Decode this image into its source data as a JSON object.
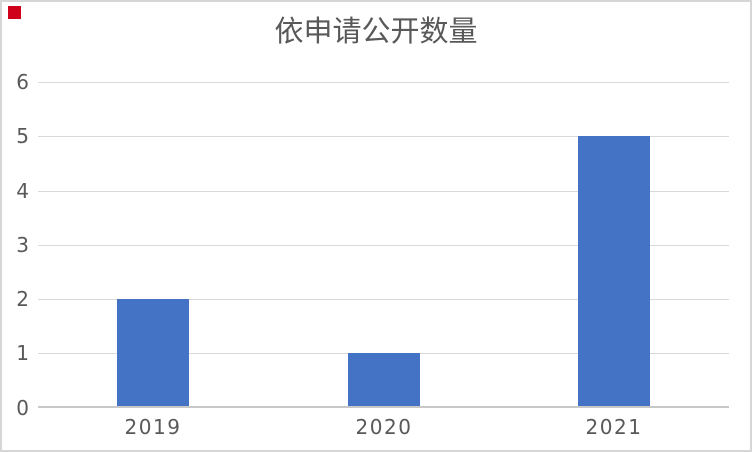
{
  "chart_data": {
    "type": "bar",
    "title": "依申请公开数量",
    "categories": [
      "2019",
      "2020",
      "2021"
    ],
    "values": [
      2,
      1,
      5
    ],
    "xlabel": "",
    "ylabel": "",
    "ylim": [
      0,
      6
    ],
    "ytick_step": 1,
    "yticks": [
      0,
      1,
      2,
      3,
      4,
      5,
      6
    ],
    "grid": true,
    "legend": false,
    "bar_color": "#4472c4"
  },
  "style": {
    "background": "#ffffff",
    "title_color": "#595959",
    "tick_color": "#595959",
    "gridline_color": "#d9d9d9",
    "axis_line_color": "#c8c8c8",
    "frame_border_color": "#d6d6d6",
    "marker_color": "#d0021b"
  }
}
